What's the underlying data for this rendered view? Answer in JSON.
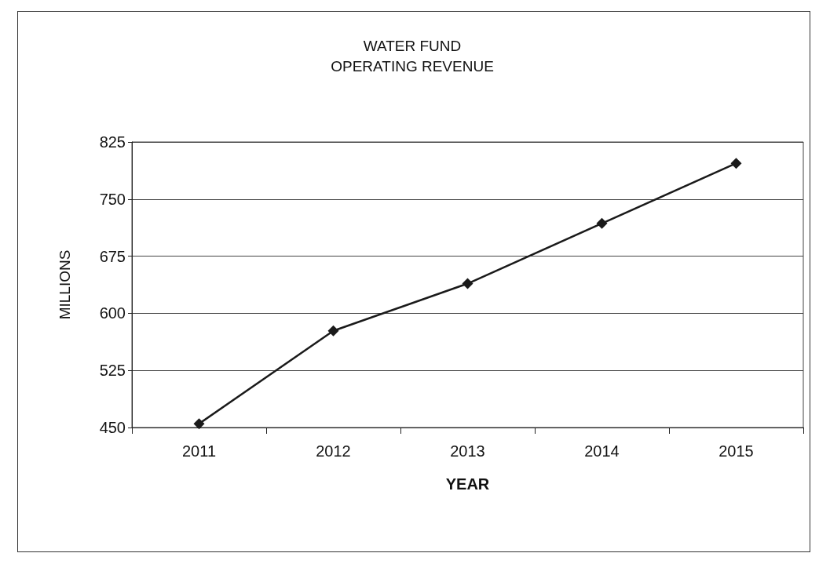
{
  "chart_data": {
    "type": "line",
    "title": "WATER FUND\nOPERATING REVENUE",
    "xlabel": "YEAR",
    "ylabel": "MILLIONS",
    "categories": [
      "2011",
      "2012",
      "2013",
      "2014",
      "2015"
    ],
    "series": [
      {
        "color": "#1a1a1a",
        "values": [
          455,
          577,
          639,
          718,
          797
        ]
      }
    ],
    "ylim": [
      450,
      825
    ],
    "yticks": [
      450,
      525,
      600,
      675,
      750,
      825
    ],
    "grid": "y",
    "marker": "diamond",
    "line_style": "solid"
  }
}
